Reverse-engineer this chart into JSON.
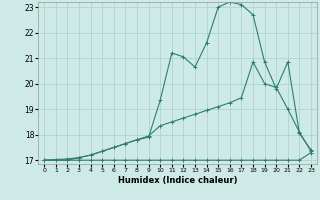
{
  "xlabel": "Humidex (Indice chaleur)",
  "bg_color": "#ceeae7",
  "grid_color": "#aed4d0",
  "line_color": "#2e7d6e",
  "xlim": [
    -0.5,
    23.5
  ],
  "ylim": [
    16.85,
    23.2
  ],
  "yticks": [
    17,
    18,
    19,
    20,
    21,
    22,
    23
  ],
  "xticks": [
    0,
    1,
    2,
    3,
    4,
    5,
    6,
    7,
    8,
    9,
    10,
    11,
    12,
    13,
    14,
    15,
    16,
    17,
    18,
    19,
    20,
    21,
    22,
    23
  ],
  "line1_x": [
    0,
    1,
    2,
    3,
    4,
    5,
    6,
    7,
    8,
    9,
    10,
    11,
    12,
    13,
    14,
    15,
    16,
    17,
    18,
    19,
    20,
    21,
    22,
    23
  ],
  "line1_y": [
    17.0,
    17.0,
    17.0,
    17.1,
    17.2,
    17.35,
    17.5,
    17.65,
    17.8,
    17.9,
    19.35,
    21.2,
    21.05,
    20.65,
    21.6,
    23.0,
    23.2,
    23.1,
    22.7,
    20.85,
    19.8,
    20.85,
    18.05,
    17.4
  ],
  "line2_x": [
    0,
    2,
    3,
    4,
    5,
    6,
    7,
    8,
    9,
    10,
    11,
    12,
    13,
    14,
    15,
    16,
    17,
    18,
    19,
    20,
    21,
    22,
    23
  ],
  "line2_y": [
    17.0,
    17.05,
    17.1,
    17.2,
    17.35,
    17.5,
    17.65,
    17.8,
    17.95,
    18.35,
    18.5,
    18.65,
    18.8,
    18.95,
    19.1,
    19.25,
    19.45,
    20.85,
    20.0,
    19.85,
    19.0,
    18.1,
    17.35
  ],
  "line3_x": [
    0,
    2,
    3,
    4,
    5,
    6,
    7,
    8,
    9,
    10,
    11,
    12,
    13,
    14,
    15,
    16,
    17,
    18,
    19,
    20,
    21,
    22,
    23
  ],
  "line3_y": [
    17.0,
    17.0,
    17.0,
    17.0,
    17.0,
    17.0,
    17.0,
    17.0,
    17.0,
    17.0,
    17.0,
    17.0,
    17.0,
    17.0,
    17.0,
    17.0,
    17.0,
    17.0,
    17.0,
    17.0,
    17.0,
    17.0,
    17.3
  ]
}
